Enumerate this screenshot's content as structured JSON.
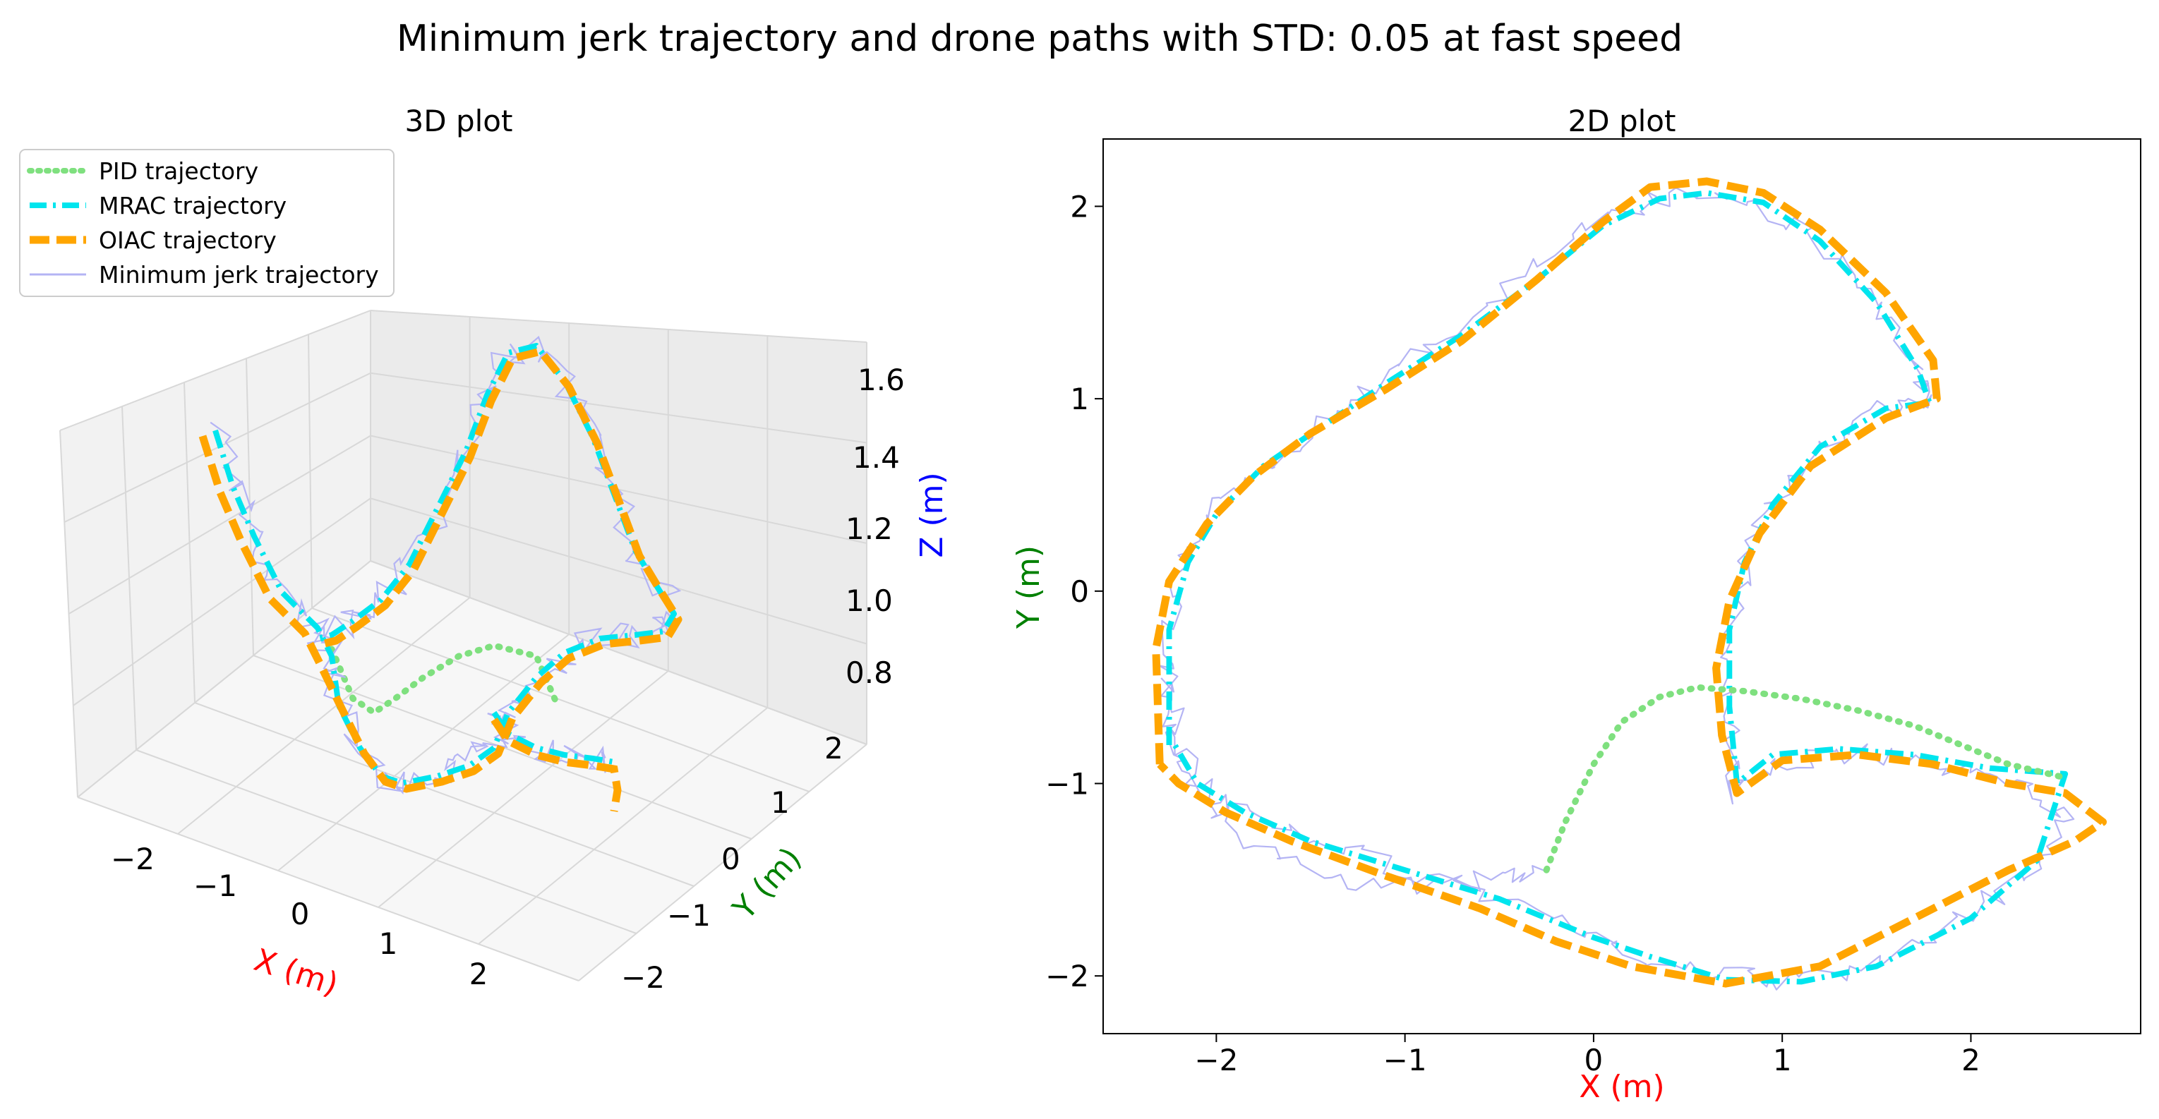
{
  "figure": {
    "title": "Minimum jerk trajectory and drone paths with STD: 0.05 at fast speed"
  },
  "colors": {
    "pid": "#7fe07f",
    "mrac": "#00e5ee",
    "oiac": "#ffa500",
    "minjerk": "#b4b4f4",
    "x_label": "#ff0000",
    "y_label": "#008000",
    "z_label": "#0000ff"
  },
  "legend": {
    "items": [
      {
        "key": "pid",
        "label": "PID trajectory",
        "style": "dotted"
      },
      {
        "key": "mrac",
        "label": "MRAC trajectory",
        "style": "dashdot"
      },
      {
        "key": "oiac",
        "label": "OIAC trajectory",
        "style": "dashed"
      },
      {
        "key": "minjerk",
        "label": "Minimum jerk trajectory",
        "style": "solid"
      }
    ]
  },
  "chart_data": [
    {
      "type": "line",
      "title": "3D plot",
      "xlabel": "X (m)",
      "ylabel": "Y (m)",
      "zlabel": "Z (m)",
      "xlim": [
        -2.5,
        2.8
      ],
      "ylim": [
        -2.2,
        2.5
      ],
      "zlim": [
        0.7,
        1.7
      ],
      "xticks": [
        "−2",
        "−1",
        "0",
        "1",
        "2"
      ],
      "yticks": [
        "−2",
        "−1",
        "0",
        "1",
        "2"
      ],
      "zticks": [
        "0.8",
        "1.0",
        "1.2",
        "1.4",
        "1.6"
      ],
      "grid": true
    },
    {
      "type": "line",
      "title": "2D plot",
      "xlabel": "X (m)",
      "ylabel": "Y (m)",
      "xlim": [
        -2.6,
        2.9
      ],
      "ylim": [
        -2.3,
        2.35
      ],
      "xticks": [
        -2,
        -1,
        0,
        1,
        2
      ],
      "xtick_labels": [
        "−2",
        "−1",
        "0",
        "1",
        "2"
      ],
      "yticks": [
        -2,
        -1,
        0,
        1,
        2
      ],
      "ytick_labels": [
        "−2",
        "−1",
        "0",
        "1",
        "2"
      ],
      "grid": false,
      "series": [
        {
          "name": "Minimum jerk trajectory",
          "key": "minjerk",
          "x": [
            -0.25,
            -0.5,
            -0.9,
            -1.4,
            -1.85,
            -2.15,
            -2.25,
            -2.25,
            -2.18,
            -2.05,
            -1.85,
            -1.55,
            -1.2,
            -0.8,
            -0.4,
            0.0,
            0.3,
            0.55,
            0.85,
            1.2,
            1.5,
            1.72,
            1.78,
            1.55,
            1.2,
            0.95,
            0.8,
            0.72,
            0.72,
            0.76,
            0.85,
            1.2,
            1.6,
            2.0,
            2.35,
            2.52,
            2.3,
            1.95,
            1.5,
            1.1,
            0.7,
            0.3,
            0.0,
            -0.5,
            -1.0,
            -1.5,
            -1.85,
            -2.1,
            -2.22,
            -2.25
          ],
          "y": [
            -1.45,
            -1.5,
            -1.52,
            -1.5,
            -1.3,
            -1.0,
            -0.6,
            -0.25,
            0.1,
            0.35,
            0.58,
            0.8,
            1.05,
            1.3,
            1.6,
            1.9,
            2.04,
            2.07,
            2.02,
            1.82,
            1.5,
            1.15,
            0.98,
            0.95,
            0.75,
            0.45,
            0.15,
            -0.2,
            -0.6,
            -1.05,
            -0.95,
            -0.85,
            -0.85,
            -0.95,
            -1.05,
            -1.2,
            -1.45,
            -1.7,
            -1.95,
            -2.03,
            -2.0,
            -1.9,
            -1.8,
            -1.6,
            -1.45,
            -1.3,
            -1.15,
            -1.0,
            -0.7,
            -0.4
          ]
        },
        {
          "name": "MRAC trajectory",
          "key": "mrac",
          "x": [
            -2.25,
            -2.25,
            -2.15,
            -2.0,
            -1.75,
            -1.45,
            -1.1,
            -0.7,
            -0.3,
            0.05,
            0.35,
            0.6,
            0.9,
            1.2,
            1.5,
            1.72,
            1.78,
            1.55,
            1.2,
            0.95,
            0.8,
            0.72,
            0.72,
            0.76,
            0.95,
            1.3,
            1.7,
            2.1,
            2.5,
            2.35,
            2.0,
            1.5,
            1.1,
            0.7,
            0.3,
            0.0,
            -0.5,
            -1.0,
            -1.5,
            -1.85,
            -2.1,
            -2.22,
            -2.25
          ],
          "y": [
            -0.8,
            -0.2,
            0.15,
            0.4,
            0.65,
            0.85,
            1.08,
            1.33,
            1.62,
            1.9,
            2.04,
            2.07,
            2.02,
            1.82,
            1.5,
            1.15,
            0.98,
            0.95,
            0.75,
            0.45,
            0.15,
            -0.2,
            -0.6,
            -1.0,
            -0.85,
            -0.82,
            -0.85,
            -0.92,
            -0.95,
            -1.4,
            -1.7,
            -1.95,
            -2.03,
            -2.02,
            -1.9,
            -1.8,
            -1.6,
            -1.45,
            -1.3,
            -1.15,
            -1.0,
            -0.8,
            -0.8
          ]
        },
        {
          "name": "OIAC trajectory",
          "key": "oiac",
          "x": [
            -2.3,
            -2.32,
            -2.25,
            -2.05,
            -1.8,
            -1.5,
            -1.1,
            -0.7,
            -0.3,
            0.05,
            0.3,
            0.6,
            0.9,
            1.2,
            1.55,
            1.8,
            1.82,
            1.55,
            1.15,
            0.88,
            0.72,
            0.65,
            0.68,
            0.76,
            1.0,
            1.4,
            1.8,
            2.2,
            2.5,
            2.7,
            2.55,
            2.2,
            1.7,
            1.2,
            0.7,
            0.2,
            -0.2,
            -0.6,
            -1.1,
            -1.6,
            -1.95,
            -2.2,
            -2.3
          ],
          "y": [
            -0.9,
            -0.3,
            0.05,
            0.35,
            0.6,
            0.82,
            1.05,
            1.3,
            1.62,
            1.92,
            2.1,
            2.13,
            2.07,
            1.88,
            1.55,
            1.2,
            1.0,
            0.9,
            0.65,
            0.3,
            -0.05,
            -0.4,
            -0.75,
            -1.05,
            -0.88,
            -0.85,
            -0.9,
            -1.0,
            -1.05,
            -1.2,
            -1.3,
            -1.45,
            -1.7,
            -1.95,
            -2.04,
            -1.95,
            -1.82,
            -1.65,
            -1.48,
            -1.3,
            -1.15,
            -1.0,
            -0.9
          ]
        },
        {
          "name": "PID trajectory",
          "key": "pid",
          "x": [
            -0.25,
            -0.15,
            0.0,
            0.15,
            0.35,
            0.55,
            0.8,
            1.1,
            1.4,
            1.7,
            1.95,
            2.2,
            2.5
          ],
          "y": [
            -1.45,
            -1.2,
            -0.9,
            -0.68,
            -0.55,
            -0.5,
            -0.52,
            -0.56,
            -0.62,
            -0.7,
            -0.8,
            -0.9,
            -0.97
          ]
        }
      ]
    }
  ]
}
